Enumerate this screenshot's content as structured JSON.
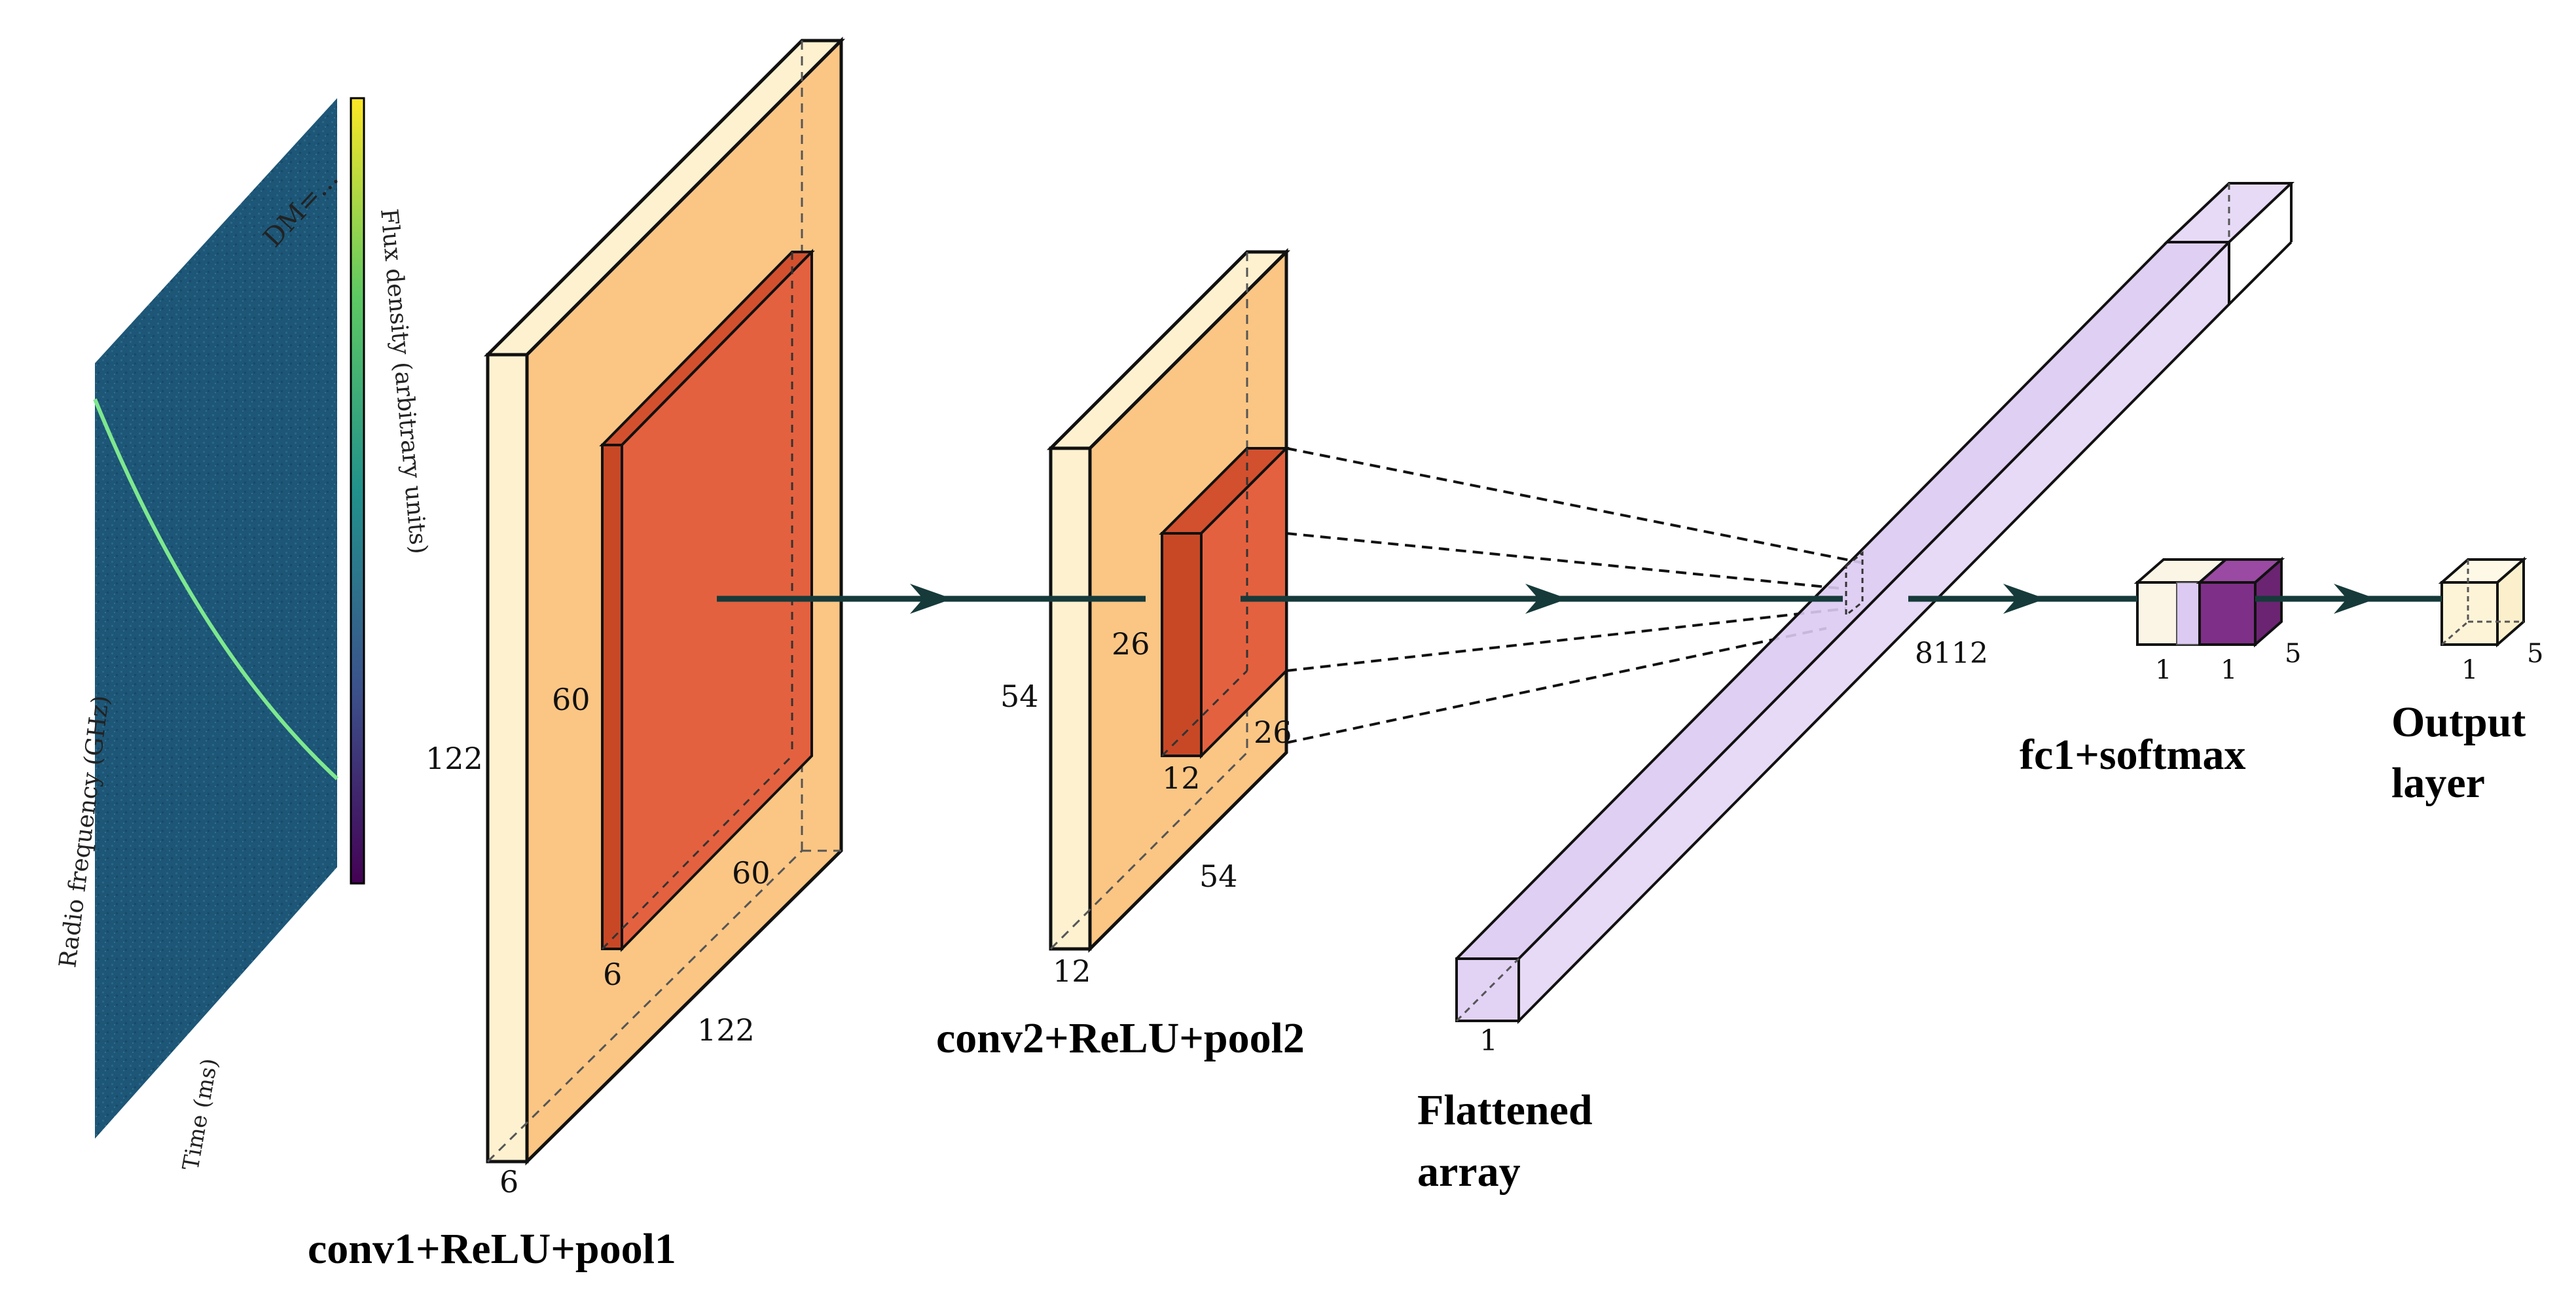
{
  "input": {
    "plot_title": "DM=...",
    "xlabel": "Time (ms)",
    "ylabel": "Radio frequency (GHz)",
    "colorbar_label": "Flux density (arbitrary units)"
  },
  "conv1": {
    "caption": "conv1+ReLU+pool1",
    "outer_height": "122",
    "outer_width": "122",
    "outer_depth": "6",
    "inner_height": "60",
    "inner_width": "60",
    "inner_depth": "6"
  },
  "conv2": {
    "caption": "conv2+ReLU+pool2",
    "outer_height": "54",
    "outer_width": "54",
    "outer_depth": "12",
    "inner_height": "26",
    "inner_width": "26",
    "inner_depth": "12"
  },
  "flatten": {
    "caption_line1": "Flattened",
    "caption_line2": "array",
    "size": "8112",
    "width": "1"
  },
  "fc1": {
    "caption": "fc1+softmax",
    "dim_a": "1",
    "dim_b": "1",
    "dim_c": "5"
  },
  "output": {
    "caption_line1": "Output",
    "caption_line2": "layer",
    "dim_a": "1",
    "dim_b": "5"
  },
  "colors": {
    "pale_yellow": "#fdf1d0",
    "orange_face": "#fbc684",
    "red_face": "#e4613f",
    "lavender": "#dccaf2",
    "purple": "#7e2f87",
    "arrow": "#163a3a"
  }
}
